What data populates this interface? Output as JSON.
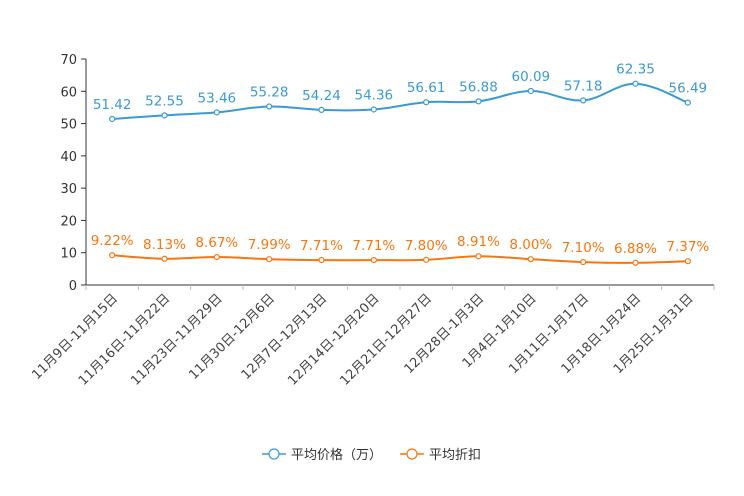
{
  "chart_data": {
    "type": "line",
    "title": "",
    "xlabel": "",
    "ylabel": "",
    "ylim": [
      0,
      70
    ],
    "yticks": [
      0,
      10,
      20,
      30,
      40,
      50,
      60,
      70
    ],
    "categories": [
      "11月9日-11月15日",
      "11月16日-11月22日",
      "11月23日-11月29日",
      "11月30日-12月6日",
      "12月7日-12月13日",
      "12月14日-12月20日",
      "12月21日-12月27日",
      "12月28日-1月3日",
      "1月4日-1月10日",
      "1月11日-1月17日",
      "1月18日-1月24日",
      "1月25日-1月31日"
    ],
    "series": [
      {
        "name": "平均价格（万）",
        "color": "#3a9ad6",
        "values": [
          51.42,
          52.55,
          53.46,
          55.28,
          54.24,
          54.36,
          56.61,
          56.88,
          60.09,
          57.18,
          62.35,
          56.49
        ],
        "labels": [
          "51.42",
          "52.55",
          "53.46",
          "55.28",
          "54.24",
          "54.36",
          "56.61",
          "56.88",
          "60.09",
          "57.18",
          "62.35",
          "56.49"
        ]
      },
      {
        "name": "平均折扣",
        "color": "#f7760f",
        "values": [
          9.22,
          8.13,
          8.67,
          7.99,
          7.71,
          7.71,
          7.8,
          8.91,
          8.0,
          7.1,
          6.88,
          7.37
        ],
        "labels": [
          "9.22%",
          "8.13%",
          "8.67%",
          "7.99%",
          "7.71%",
          "7.71%",
          "7.80%",
          "8.91%",
          "8.00%",
          "7.10%",
          "6.88%",
          "7.37%"
        ]
      }
    ],
    "legend": "bottom-center",
    "grid": false
  }
}
